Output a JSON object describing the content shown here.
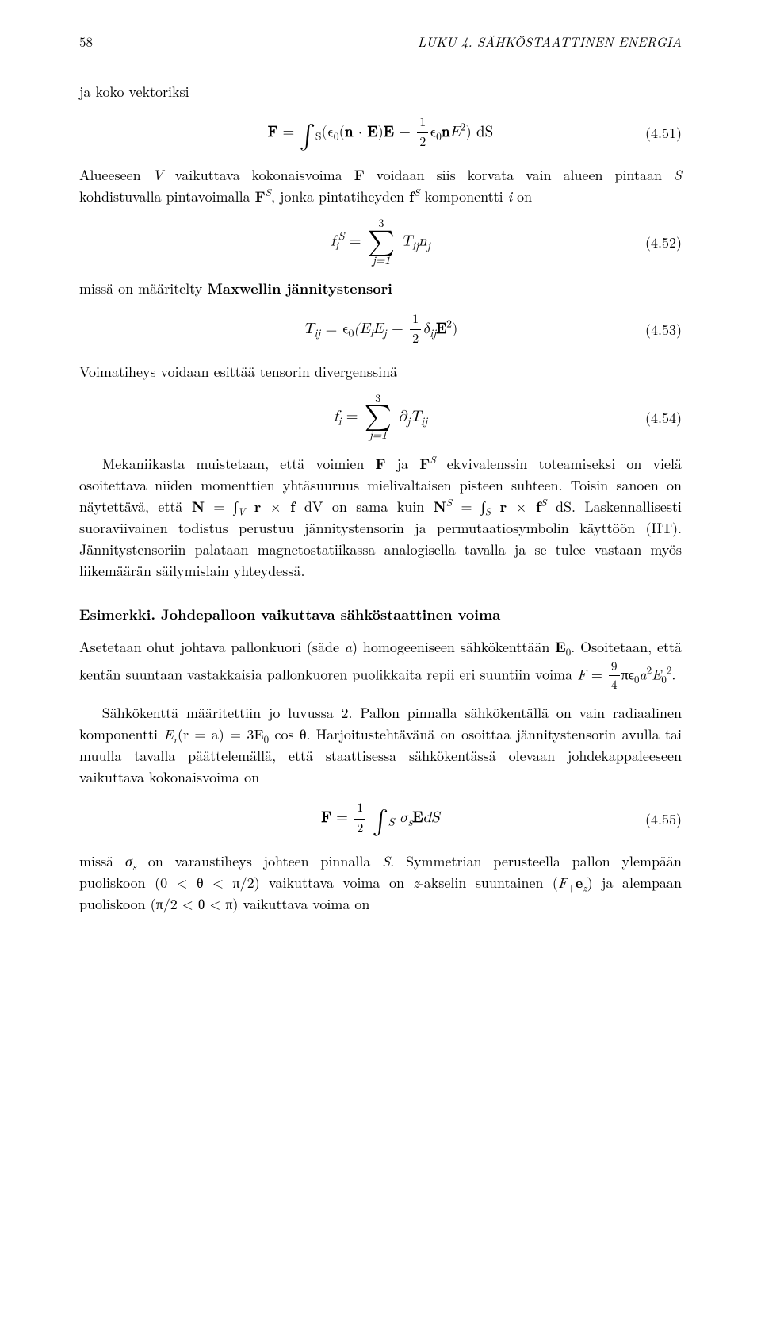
{
  "header": {
    "page_number": "58",
    "chapter": "LUKU 4. SÄHKÖSTAATTINEN ENERGIA"
  },
  "para1": "ja koko vektoriksi",
  "eq451": {
    "lhs": "F",
    "rhs_pre": " = ",
    "int_sub": "S",
    "body_a": "(ϵ",
    "body_a2": "(",
    "body_b": " · ",
    "body_c": ")",
    "body_d": " − ",
    "frac_num": "1",
    "frac_den": "2",
    "body_e": "ϵ",
    "body_f": "E",
    "body_g": ") dS",
    "n": "n",
    "E": "E",
    "zero": "0",
    "sq": "2",
    "num": "(4.51)"
  },
  "para2a": "Alueeseen ",
  "para2_V": "V",
  "para2b": " vaikuttava kokonaisvoima ",
  "para2_F": "F",
  "para2c": " voidaan siis korvata vain alueen pintaan ",
  "para2_S": "S",
  "para2d": " kohdistuvalla pintavoimalla ",
  "para2_FS": "F",
  "para2_FS_sup": "S",
  "para2e": ", jonka pintatiheyden ",
  "para2_fS": "f",
  "para2_fS_sup": "S",
  "para2f": " komponentti ",
  "para2_i": "i",
  "para2g": " on",
  "eq452": {
    "lhs_base": "f",
    "lhs_sub": "i",
    "lhs_sup": "S",
    "eq": " = ",
    "sum_top": "3",
    "sum_bot": "j=1",
    "body": "T",
    "body_sub": "ij",
    "body2": "n",
    "body2_sub": "j",
    "num": "(4.52)"
  },
  "para3a": "missä on määritelty ",
  "para3b": "Maxwellin jännitystensori",
  "eq453": {
    "lhs": "T",
    "lhs_sub": "ij",
    "eq": " = ϵ",
    "zero": "0",
    "open": "(E",
    "i": "i",
    "mid": "E",
    "j": "j",
    "minus": " − ",
    "frac_num": "1",
    "frac_den": "2",
    "delta": "δ",
    "delta_sub": "ij",
    "E": "E",
    "sq": "2",
    "close": ")",
    "num": "(4.53)"
  },
  "para4": "Voimatiheys voidaan esittää tensorin divergenssinä",
  "eq454": {
    "lhs": "f",
    "lhs_sub": "i",
    "eq": " = ",
    "sum_top": "3",
    "sum_bot": "j=1",
    "partial": "∂",
    "partial_sub": "j",
    "T": "T",
    "T_sub": "ij",
    "num": "(4.54)"
  },
  "para5a": "Mekaniikasta muistetaan, että voimien ",
  "para5_F": "F",
  "para5b": " ja ",
  "para5_FS": "F",
  "para5_FS_sup": "S",
  "para5c": " ekvivalenssin toteamiseksi on vielä osoitettava niiden momenttien yhtäsuuruus mielivaltaisen pisteen suhteen. Toisin sanoen on näytettävä, että ",
  "para5_N": "N",
  "para5d": " = ∫",
  "para5_int1_sub": "V",
  "para5_e": " ",
  "para5_r": "r",
  "para5_f": " × ",
  "para5_fvec": "f",
  "para5_g": " dV on sama kuin ",
  "para5_NS": "N",
  "para5_NS_sup": "S",
  "para5_h": " = ∫",
  "para5_int2_sub": "S",
  "para5_i": " ",
  "para5_r2": "r",
  "para5_j": " × ",
  "para5_fS2": "f",
  "para5_fS2_sup": "S",
  "para5_k": " dS. Laskennallisesti suoraviivainen todistus perustuu jännitystensorin ja permutaatiosymbolin käyttöön (HT). Jännitystensoriin palataan magnetostatiikassa analogisella tavalla ja se tulee vastaan myös liikemäärän säilymislain yhteydessä.",
  "example_label": "Esimerkki.",
  "example_title": " Johdepalloon vaikuttava sähköstaattinen voima",
  "para6a": "Asetetaan ohut johtava pallonkuori (säde ",
  "para6_a": "a",
  "para6b": ") homogeeniseen sähkökenttään ",
  "para6_E0": "E",
  "para6_E0_sub": "0",
  "para6c": ". Osoitetaan, että kentän suuntaan vastakkaisia pallonkuoren puolikkaita repii eri suuntiin voima ",
  "para6_F": "F",
  "para6d": " = ",
  "para6_frac_num": "9",
  "para6_frac_den": "4",
  "para6e": "πϵ",
  "para6_zero": "0",
  "para6_a2": "a",
  "para6_sq": "2",
  "para6_E": "E",
  "para6_E_sub": "0",
  "para6_E_sup": "2",
  "para6f": ".",
  "para7a": "Sähkökenttä määritettiin jo luvussa 2. Pallon pinnalla sähkökentällä on vain radiaalinen komponentti ",
  "para7_Er": "E",
  "para7_Er_sub": "r",
  "para7b": "(r = a) = 3E",
  "para7_zero": "0",
  "para7c": " cos θ. Harjoitustehtävänä on osoittaa jännitystensorin avulla tai muulla tavalla päättelemällä, että staattisessa sähkökentässä olevaan johdekappaleeseen vaikuttava kokonaisvoima on",
  "eq455": {
    "lhs": "F",
    "eq": " = ",
    "frac_num": "1",
    "frac_den": "2",
    "int_sub": "S",
    "sigma": "σ",
    "sigma_sub": "s",
    "E": "E",
    "dS": "dS",
    "num": "(4.55)"
  },
  "para8a": "missä ",
  "para8_sigma": "σ",
  "para8_sigma_sub": "s",
  "para8b": " on varaustiheys johteen pinnalla ",
  "para8_S": "S",
  "para8c": ". Symmetrian perusteella pallon ylempään puoliskoon (0 < θ < π/2) vaikuttava voima on ",
  "para8_z": "z",
  "para8d": "-akselin suuntainen (",
  "para8_Fplus": "F",
  "para8_plus_sub": "+",
  "para8_ez": "e",
  "para8_ez_sub": "z",
  "para8e": ") ja alempaan puoliskoon (π/2 < θ < π) vaikuttava voima on"
}
